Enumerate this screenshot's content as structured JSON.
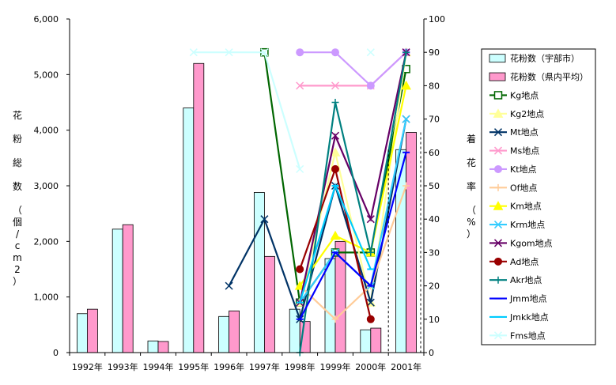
{
  "chart_data": {
    "type": "bar",
    "categories": [
      "1992年",
      "1993年",
      "1994年",
      "1995年",
      "1996年",
      "1997年",
      "1998年",
      "1999年",
      "2000年",
      "2001年"
    ],
    "y_left": {
      "label": "花 粉 総 数 （個/cm2）",
      "range": [
        0,
        6000
      ],
      "ticks": [
        "0",
        "1,000",
        "2,000",
        "3,000",
        "4,000",
        "5,000",
        "6,000"
      ]
    },
    "y_right": {
      "label": "着 花 率 （%）",
      "range": [
        0,
        100
      ],
      "ticks": [
        "0",
        "10",
        "20",
        "30",
        "40",
        "50",
        "60",
        "70",
        "80",
        "90",
        "100"
      ]
    },
    "grid": false,
    "legend_position": "right",
    "bar_series": [
      {
        "name": "花粉数（宇部市）",
        "color": "#ccffff",
        "values": [
          700,
          2220,
          210,
          4400,
          650,
          2880,
          780,
          1690,
          410,
          3650
        ]
      },
      {
        "name": "花粉数（県内平均）",
        "color": "#ff99cc",
        "values": [
          780,
          2300,
          200,
          5200,
          750,
          1730,
          560,
          2000,
          440,
          3960
        ]
      }
    ],
    "line_series": [
      {
        "name": "Kg地点",
        "color": "#006600",
        "marker": "square-open",
        "values": [
          null,
          null,
          null,
          null,
          null,
          90,
          15,
          30,
          30,
          85
        ]
      },
      {
        "name": "Kg2地点",
        "color": "#ffff99",
        "marker": "triangle",
        "values": [
          null,
          null,
          null,
          null,
          null,
          null,
          15,
          60,
          15,
          90
        ]
      },
      {
        "name": "Mt地点",
        "color": "#003366",
        "marker": "x",
        "values": [
          null,
          null,
          null,
          null,
          20,
          40,
          10,
          50,
          15,
          70
        ]
      },
      {
        "name": "Ms地点",
        "color": "#ff99cc",
        "marker": "x",
        "values": [
          null,
          null,
          null,
          null,
          null,
          null,
          80,
          80,
          80,
          90
        ]
      },
      {
        "name": "Kt地点",
        "color": "#cc99ff",
        "marker": "circle",
        "values": [
          null,
          null,
          null,
          null,
          null,
          null,
          90,
          90,
          80,
          90
        ]
      },
      {
        "name": "Of地点",
        "color": "#ffcc99",
        "marker": "plus",
        "values": [
          null,
          null,
          null,
          null,
          null,
          null,
          20,
          10,
          20,
          50
        ]
      },
      {
        "name": "Km地点",
        "color": "#ffff00",
        "marker": "triangle",
        "values": [
          null,
          null,
          null,
          null,
          null,
          null,
          20,
          35,
          30,
          80
        ]
      },
      {
        "name": "Krm地点",
        "color": "#33ccff",
        "marker": "x",
        "values": [
          null,
          null,
          null,
          null,
          null,
          null,
          15,
          30,
          20,
          70
        ]
      },
      {
        "name": "Kgom地点",
        "color": "#660066",
        "marker": "x",
        "values": [
          null,
          null,
          null,
          null,
          null,
          null,
          15,
          65,
          40,
          90
        ]
      },
      {
        "name": "Ad地点",
        "color": "#990000",
        "marker": "circle",
        "values": [
          null,
          null,
          null,
          null,
          null,
          null,
          25,
          55,
          10,
          null
        ]
      },
      {
        "name": "Akr地点",
        "color": "#008080",
        "marker": "plus",
        "values": [
          null,
          null,
          null,
          null,
          null,
          null,
          0,
          75,
          30,
          90
        ]
      },
      {
        "name": "Jmm地点",
        "color": "#0000ff",
        "marker": "line",
        "values": [
          null,
          null,
          null,
          null,
          null,
          null,
          10,
          30,
          20,
          60
        ]
      },
      {
        "name": "Jmkk地点",
        "color": "#00ccff",
        "marker": "line",
        "values": [
          null,
          null,
          null,
          null,
          null,
          null,
          15,
          50,
          25,
          null
        ]
      },
      {
        "name": "Fms地点",
        "color": "#ccffff",
        "marker": "x",
        "values": [
          null,
          null,
          null,
          90,
          90,
          90,
          55,
          null,
          90,
          null
        ]
      }
    ]
  }
}
